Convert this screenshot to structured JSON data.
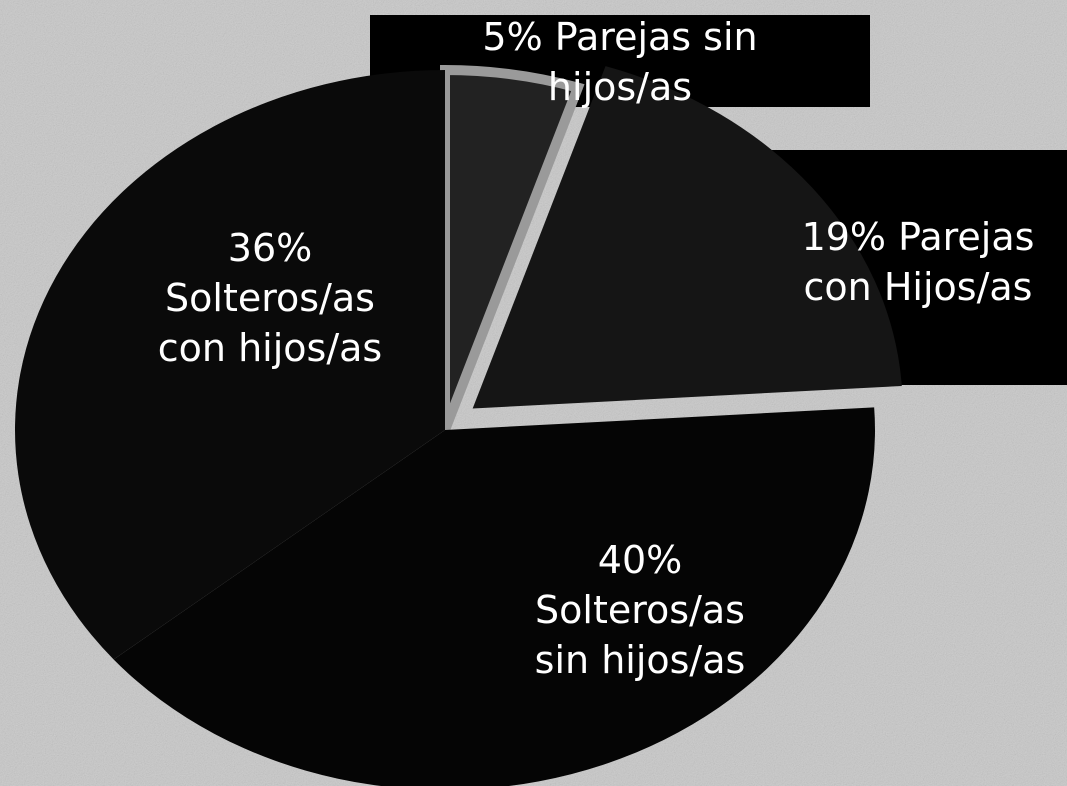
{
  "chart_data": {
    "type": "pie",
    "categories": [
      "Parejas sin hijos/as",
      "Parejas con Hijos/as",
      "Solteros/as sin hijos/as",
      "Solteros/as con hijos/as"
    ],
    "values": [
      5,
      19,
      40,
      36
    ],
    "value_labels": [
      "5%",
      "19%",
      "40%",
      "36%"
    ],
    "colors": [
      "#222222",
      "#151515",
      "#050505",
      "#0a0a0a"
    ]
  }
}
